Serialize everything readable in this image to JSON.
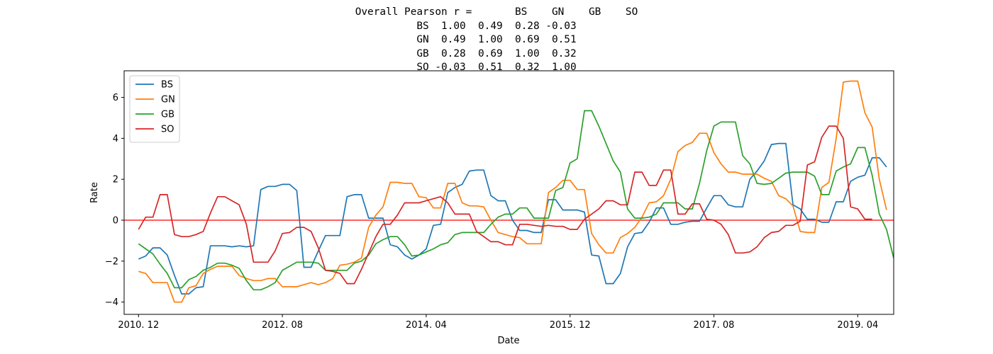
{
  "chart_data": {
    "type": "line",
    "title_lines": [
      "Overall Pearson r =       BS    GN    GB    SO",
      "BS  1.00  0.49  0.28 -0.03",
      "GN  0.49  1.00  0.69  0.51",
      "GB  0.28  0.69  1.00  0.32",
      "SO -0.03  0.51  0.32  1.00"
    ],
    "xlabel": "Date",
    "ylabel": "Rate",
    "x_start": "2010-12",
    "x_range": [
      "2010-10",
      "2019-09"
    ],
    "x_tick_labels": [
      "2010. 12",
      "2012. 08",
      "2014. 04",
      "2015. 12",
      "2017. 08",
      "2019. 04"
    ],
    "x_tick_months": [
      "2010-12",
      "2012-08",
      "2014-04",
      "2015-12",
      "2017-08",
      "2019-04"
    ],
    "ylim": [
      -4.6,
      7.3
    ],
    "y_ticks": [
      -4,
      -2,
      0,
      2,
      4,
      6
    ],
    "grid": false,
    "legend_position": "upper-left",
    "reference_line": {
      "y": 0,
      "color": "#ff0000"
    },
    "series": [
      {
        "name": "BS",
        "color": "#1f77b4",
        "values": [
          -1.9,
          -1.75,
          -1.35,
          -1.35,
          -1.7,
          -2.7,
          -3.6,
          -3.6,
          -3.3,
          -3.25,
          -1.25,
          -1.25,
          -1.25,
          -1.3,
          -1.25,
          -1.3,
          -1.25,
          1.5,
          1.65,
          1.65,
          1.75,
          1.75,
          1.45,
          -2.3,
          -2.3,
          -1.5,
          -0.75,
          -0.75,
          -0.75,
          1.15,
          1.25,
          1.25,
          0.1,
          0.1,
          0.1,
          -1.2,
          -1.3,
          -1.7,
          -1.9,
          -1.7,
          -1.4,
          -0.25,
          -0.2,
          1.35,
          1.6,
          1.75,
          2.4,
          2.45,
          2.45,
          1.2,
          0.95,
          0.95,
          0.0,
          -0.5,
          -0.5,
          -0.6,
          -0.6,
          1.0,
          1.0,
          0.5,
          0.5,
          0.5,
          0.4,
          -1.7,
          -1.75,
          -3.1,
          -3.1,
          -2.6,
          -1.3,
          -0.65,
          -0.6,
          -0.1,
          0.6,
          0.6,
          -0.2,
          -0.2,
          -0.1,
          -0.05,
          -0.05,
          0.6,
          1.2,
          1.2,
          0.75,
          0.65,
          0.65,
          2.0,
          2.4,
          2.9,
          3.7,
          3.75,
          3.75,
          0.75,
          0.55,
          0.05,
          0.05,
          -0.1,
          -0.1,
          0.9,
          0.9,
          1.9,
          2.1,
          2.2,
          3.05,
          3.05,
          2.6
        ]
      },
      {
        "name": "GN",
        "color": "#ff7f0e",
        "values": [
          -2.5,
          -2.6,
          -3.05,
          -3.05,
          -3.05,
          -4.0,
          -4.0,
          -3.3,
          -3.2,
          -2.6,
          -2.4,
          -2.25,
          -2.25,
          -2.25,
          -2.7,
          -2.85,
          -2.95,
          -2.95,
          -2.85,
          -2.85,
          -3.25,
          -3.25,
          -3.25,
          -3.15,
          -3.05,
          -3.15,
          -3.05,
          -2.85,
          -2.2,
          -2.15,
          -2.05,
          -1.85,
          -0.35,
          0.25,
          0.65,
          1.85,
          1.85,
          1.8,
          1.8,
          1.15,
          1.1,
          0.6,
          0.6,
          1.8,
          1.8,
          0.85,
          0.7,
          0.7,
          0.65,
          0.0,
          -0.6,
          -0.7,
          -0.8,
          -0.85,
          -1.15,
          -1.15,
          -1.15,
          1.35,
          1.6,
          1.95,
          1.95,
          1.5,
          1.5,
          -0.65,
          -1.2,
          -1.6,
          -1.6,
          -0.85,
          -0.65,
          -0.35,
          0.15,
          0.85,
          0.9,
          1.2,
          2.0,
          3.35,
          3.65,
          3.8,
          4.25,
          4.25,
          3.3,
          2.75,
          2.35,
          2.35,
          2.25,
          2.25,
          2.25,
          2.05,
          1.9,
          1.2,
          1.05,
          0.7,
          -0.55,
          -0.6,
          -0.6,
          1.6,
          1.85,
          4.0,
          6.75,
          6.8,
          6.8,
          5.25,
          4.55,
          2.0,
          0.5
        ]
      },
      {
        "name": "GB",
        "color": "#2ca02c",
        "values": [
          -1.15,
          -1.4,
          -1.65,
          -2.15,
          -2.6,
          -3.3,
          -3.3,
          -2.9,
          -2.75,
          -2.45,
          -2.3,
          -2.1,
          -2.1,
          -2.2,
          -2.35,
          -2.95,
          -3.4,
          -3.4,
          -3.25,
          -3.05,
          -2.45,
          -2.25,
          -2.05,
          -2.05,
          -2.05,
          -2.1,
          -2.45,
          -2.45,
          -2.45,
          -2.45,
          -2.1,
          -2.0,
          -1.7,
          -1.15,
          -0.95,
          -0.8,
          -0.8,
          -1.2,
          -1.75,
          -1.7,
          -1.55,
          -1.4,
          -1.2,
          -1.1,
          -0.7,
          -0.6,
          -0.6,
          -0.6,
          -0.6,
          -0.2,
          0.15,
          0.3,
          0.3,
          0.6,
          0.6,
          0.1,
          0.1,
          0.1,
          1.45,
          1.6,
          2.8,
          3.0,
          5.35,
          5.35,
          4.6,
          3.75,
          2.9,
          2.35,
          0.55,
          0.1,
          0.1,
          0.15,
          0.3,
          0.85,
          0.85,
          0.85,
          0.55,
          0.55,
          1.8,
          3.4,
          4.6,
          4.8,
          4.8,
          4.8,
          3.15,
          2.75,
          1.8,
          1.75,
          1.8,
          2.05,
          2.3,
          2.35,
          2.35,
          2.35,
          2.15,
          1.25,
          1.25,
          2.4,
          2.6,
          2.75,
          3.55,
          3.55,
          2.2,
          0.3,
          -0.45,
          -1.85
        ]
      },
      {
        "name": "SO",
        "color": "#d62728",
        "values": [
          -0.45,
          0.15,
          0.15,
          1.25,
          1.25,
          -0.7,
          -0.8,
          -0.8,
          -0.7,
          -0.55,
          0.35,
          1.15,
          1.15,
          0.95,
          0.75,
          -0.2,
          -2.05,
          -2.05,
          -2.05,
          -1.5,
          -0.65,
          -0.6,
          -0.35,
          -0.35,
          -0.55,
          -1.35,
          -2.45,
          -2.5,
          -2.6,
          -3.1,
          -3.1,
          -2.4,
          -1.6,
          -0.8,
          -0.2,
          -0.2,
          0.25,
          0.85,
          0.85,
          0.85,
          0.95,
          1.05,
          1.15,
          0.85,
          0.3,
          0.3,
          0.3,
          -0.55,
          -0.8,
          -1.05,
          -1.05,
          -1.2,
          -1.2,
          -0.2,
          -0.2,
          -0.25,
          -0.3,
          -0.25,
          -0.3,
          -0.3,
          -0.45,
          -0.45,
          0.05,
          0.3,
          0.55,
          0.95,
          0.95,
          0.75,
          0.75,
          2.35,
          2.35,
          1.7,
          1.7,
          2.45,
          2.45,
          0.3,
          0.3,
          0.8,
          0.8,
          0.05,
          0.0,
          -0.2,
          -0.7,
          -1.6,
          -1.6,
          -1.55,
          -1.3,
          -0.85,
          -0.6,
          -0.55,
          -0.25,
          -0.25,
          -0.05,
          2.7,
          2.85,
          4.05,
          4.6,
          4.6,
          4.0,
          0.65,
          0.55,
          0.05,
          0.05
        ]
      }
    ]
  }
}
